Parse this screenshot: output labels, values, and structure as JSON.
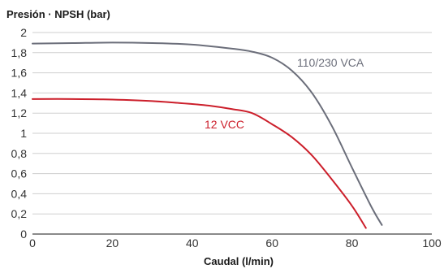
{
  "chart_data": {
    "type": "line",
    "title": "Presión · NPSH (bar)",
    "xlabel": "Caudal (l/min)",
    "ylabel": "",
    "xlim": [
      0,
      100
    ],
    "ylim": [
      0,
      2
    ],
    "x_ticks": [
      "0",
      "20",
      "40",
      "60",
      "80",
      "100"
    ],
    "x_tick_values": [
      0,
      20,
      40,
      60,
      80,
      100
    ],
    "y_ticks": [
      "0",
      "0,2",
      "0,4",
      "0,6",
      "0,8",
      "1",
      "1,2",
      "1,4",
      "1,6",
      "1,8",
      "2"
    ],
    "y_tick_values": [
      0,
      0.2,
      0.4,
      0.6,
      0.8,
      1,
      1.2,
      1.4,
      1.6,
      1.8,
      2
    ],
    "grid": "horizontal",
    "series": [
      {
        "name": "110/230 VCA",
        "color": "#6b6e7a",
        "x": [
          0,
          10,
          20,
          30,
          40,
          50,
          55,
          60,
          65,
          70,
          75,
          80,
          85,
          87.5
        ],
        "y": [
          1.89,
          1.895,
          1.9,
          1.895,
          1.88,
          1.84,
          1.81,
          1.75,
          1.62,
          1.4,
          1.07,
          0.66,
          0.26,
          0.09
        ]
      },
      {
        "name": "12 VCC",
        "color": "#cc1f2b",
        "x": [
          0,
          10,
          20,
          30,
          40,
          45,
          50,
          55,
          60,
          65,
          70,
          75,
          80,
          83.5
        ],
        "y": [
          1.34,
          1.34,
          1.335,
          1.32,
          1.29,
          1.27,
          1.24,
          1.2,
          1.09,
          0.96,
          0.78,
          0.54,
          0.28,
          0.06
        ]
      }
    ]
  }
}
